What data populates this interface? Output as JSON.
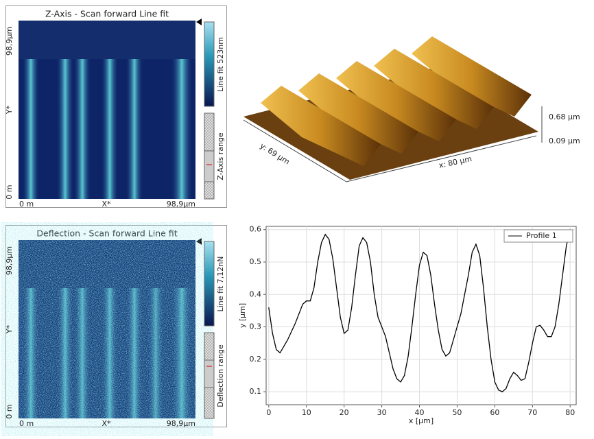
{
  "panels": [
    {
      "title": "Z-Axis - Scan forward   Line fit",
      "y_top": "98,9µm",
      "y_axis": "Y*",
      "y_bottom": "0 m",
      "x_left": "0 m",
      "x_axis": "X*",
      "x_right": "98,9µm",
      "colorbar_label": "Line fit 523nm",
      "range_label": "Z-Axis range"
    },
    {
      "title": "Deflection - Scan forward   Line fit",
      "y_top": "98,9µm",
      "y_axis": "Y*",
      "y_bottom": "0 m",
      "x_left": "0 m",
      "x_axis": "X*",
      "x_right": "98,9µm",
      "colorbar_label": "Line fit 7,12nN",
      "range_label": "Deflection range"
    }
  ],
  "view3d": {
    "z_top": "0.68 µm",
    "z_bottom": "0.09 µm",
    "y_label": "y: 69 µm",
    "x_label": "x: 80 µm"
  },
  "chart_data": {
    "type": "line",
    "x_label": "x [µm]",
    "y_label": "y [µm]",
    "xlim": [
      -0.7,
      81.6
    ],
    "xticks": [
      0,
      10,
      20,
      30,
      40,
      50,
      60,
      70,
      80
    ],
    "ylim": [
      0.06,
      0.61
    ],
    "yticks": [
      0.1,
      0.2,
      0.3,
      0.4,
      0.5,
      0.6
    ],
    "grid": true,
    "legend": "upper right",
    "series": [
      {
        "name": "Profile 1",
        "color": "#000000",
        "x": [
          0,
          1,
          2,
          3,
          5,
          7,
          9,
          10,
          11,
          12,
          13,
          14,
          15,
          16,
          17,
          18,
          19,
          20,
          21,
          22,
          23,
          24,
          25,
          26,
          27,
          28,
          29,
          30,
          31,
          32,
          33,
          34,
          35,
          36,
          37,
          38,
          39,
          40,
          41,
          42,
          43,
          44,
          45,
          46,
          47,
          48,
          49,
          50,
          51,
          52,
          53,
          54,
          55,
          56,
          57,
          58,
          59,
          60,
          61,
          62,
          63,
          64,
          65,
          66,
          67,
          68,
          69,
          70,
          71,
          72,
          73,
          74,
          75,
          76,
          77,
          78,
          79,
          80
        ],
        "values": [
          0.36,
          0.28,
          0.23,
          0.22,
          0.26,
          0.31,
          0.37,
          0.38,
          0.38,
          0.42,
          0.5,
          0.56,
          0.585,
          0.57,
          0.51,
          0.42,
          0.33,
          0.28,
          0.29,
          0.36,
          0.46,
          0.55,
          0.575,
          0.56,
          0.5,
          0.4,
          0.33,
          0.3,
          0.27,
          0.22,
          0.17,
          0.14,
          0.13,
          0.15,
          0.21,
          0.3,
          0.4,
          0.49,
          0.53,
          0.52,
          0.46,
          0.37,
          0.29,
          0.23,
          0.21,
          0.22,
          0.26,
          0.3,
          0.34,
          0.4,
          0.46,
          0.53,
          0.555,
          0.52,
          0.42,
          0.3,
          0.2,
          0.13,
          0.105,
          0.1,
          0.11,
          0.14,
          0.16,
          0.15,
          0.135,
          0.14,
          0.19,
          0.25,
          0.3,
          0.305,
          0.29,
          0.27,
          0.27,
          0.3,
          0.37,
          0.46,
          0.55,
          0.6
        ]
      }
    ]
  }
}
